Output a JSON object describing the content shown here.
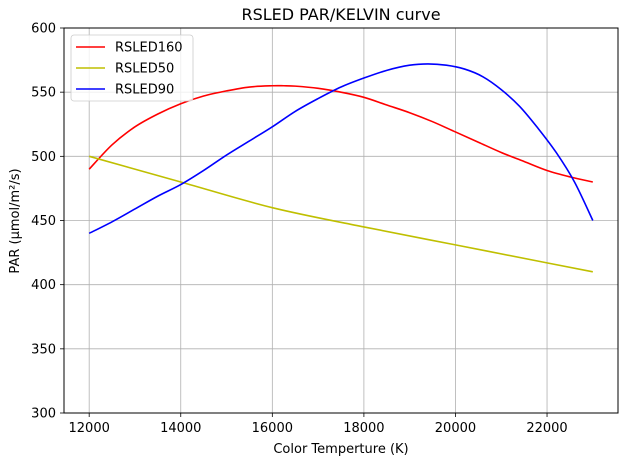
{
  "chart_data": {
    "type": "line",
    "title": "RSLED PAR/KELVIN curve",
    "xlabel": "Color Temperture (K)",
    "ylabel": "PAR (µmol/m²/s)",
    "xlim": [
      11450,
      23550
    ],
    "ylim": [
      300,
      600
    ],
    "xticks": [
      12000,
      14000,
      16000,
      18000,
      20000,
      22000
    ],
    "xtick_labels": [
      "12000",
      "14000",
      "16000",
      "18000",
      "20000",
      "22000"
    ],
    "yticks": [
      300,
      350,
      400,
      450,
      500,
      550,
      600
    ],
    "ytick_labels": [
      "300",
      "350",
      "400",
      "450",
      "500",
      "550",
      "600"
    ],
    "grid": true,
    "legend_position": "top-left",
    "series": [
      {
        "name": "RSLED160",
        "color": "#ff0000",
        "x": [
          12000,
          12500,
          13000,
          13500,
          14000,
          14500,
          15000,
          15500,
          16000,
          16250,
          16500,
          17000,
          17500,
          18000,
          18500,
          19000,
          19500,
          20000,
          20500,
          21000,
          21500,
          22000,
          22500,
          23000
        ],
        "y": [
          490,
          509,
          523,
          533,
          541,
          547,
          551,
          554,
          555,
          555,
          554.7,
          553,
          550,
          546,
          540,
          534,
          527,
          519,
          511,
          503,
          496,
          489,
          484,
          480
        ]
      },
      {
        "name": "RSLED50",
        "color": "#bfbf00",
        "x": [
          12000,
          14000,
          16000,
          18000,
          20000,
          22000,
          23000
        ],
        "y": [
          500,
          480,
          460,
          445,
          431,
          417,
          410
        ]
      },
      {
        "name": "RSLED90",
        "color": "#0000ff",
        "x": [
          12000,
          12500,
          13000,
          13500,
          14000,
          14500,
          15000,
          15500,
          16000,
          16500,
          17000,
          17500,
          18000,
          18500,
          19000,
          19400,
          19800,
          20200,
          20600,
          21000,
          21400,
          21800,
          22200,
          22600,
          23000
        ],
        "y": [
          440,
          449,
          459,
          469,
          478,
          489,
          501,
          512,
          523,
          535,
          545,
          554,
          561,
          567,
          571,
          572,
          571,
          568,
          562,
          552,
          539,
          522,
          503,
          480,
          450
        ]
      }
    ]
  }
}
